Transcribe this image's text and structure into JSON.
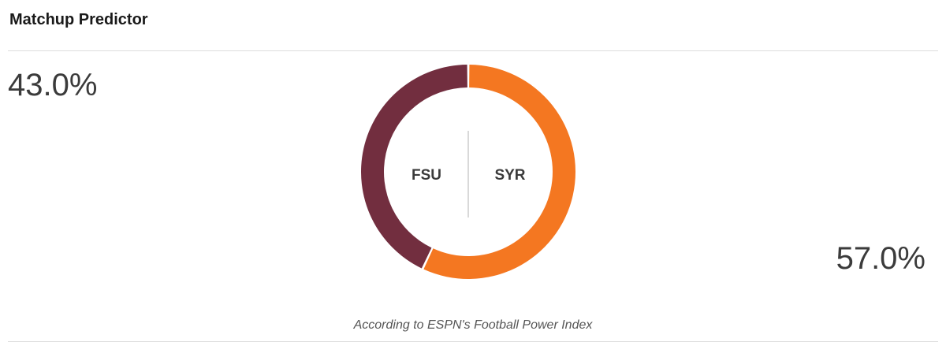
{
  "header": {
    "title": "Matchup Predictor"
  },
  "colors": {
    "fsu": "#722e3f",
    "syr": "#f47721",
    "divider": "#dcdcdc"
  },
  "chart_data": {
    "type": "pie",
    "donut": true,
    "categories": [
      "FSU",
      "SYR"
    ],
    "values": [
      43.0,
      57.0
    ],
    "value_labels": [
      "43.0%",
      "57.0%"
    ],
    "colors": [
      "#722e3f",
      "#f47721"
    ],
    "caption": "According to ESPN's Football Power Index"
  }
}
